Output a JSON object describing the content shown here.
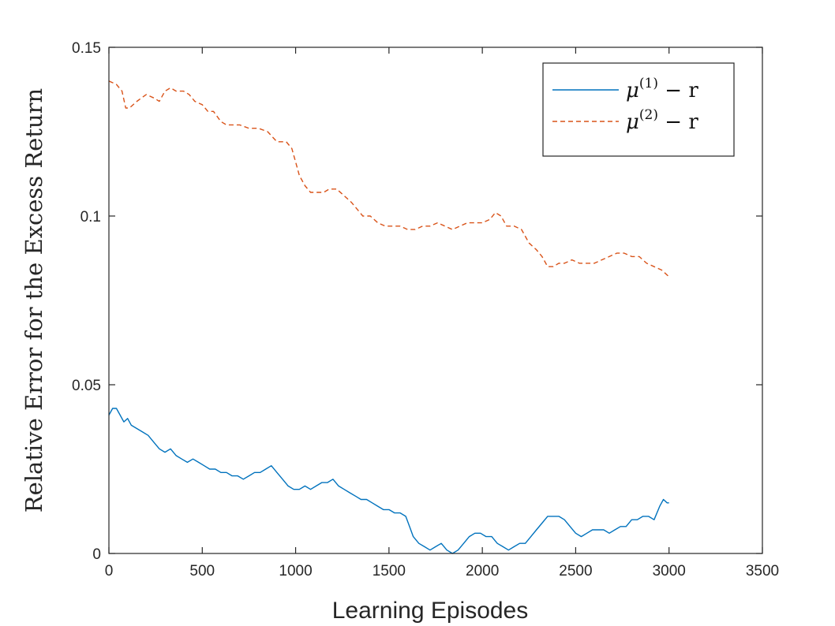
{
  "chart_data": {
    "type": "line",
    "xlabel": "Learning Episodes",
    "ylabel": "Relative Error for the Excess Return",
    "xlim": [
      0,
      3500
    ],
    "ylim": [
      0,
      0.15
    ],
    "xticks": [
      0,
      500,
      1000,
      1500,
      2000,
      2500,
      3000,
      3500
    ],
    "yticks": [
      0,
      0.05,
      0.1,
      0.15
    ],
    "xtick_labels": [
      "0",
      "500",
      "1000",
      "1500",
      "2000",
      "2500",
      "3000",
      "3500"
    ],
    "ytick_labels": [
      "0",
      "0.05",
      "0.1",
      "0.15"
    ],
    "grid": false,
    "legend_position": "top-right",
    "series": [
      {
        "name": "μ(1) − r",
        "name_parts": {
          "base": "μ",
          "sup": "(1)",
          "rest": " − r"
        },
        "color": "#0072BD",
        "style": "solid",
        "points": [
          [
            0,
            0.041
          ],
          [
            20,
            0.043
          ],
          [
            40,
            0.043
          ],
          [
            60,
            0.041
          ],
          [
            80,
            0.039
          ],
          [
            100,
            0.04
          ],
          [
            120,
            0.038
          ],
          [
            150,
            0.037
          ],
          [
            180,
            0.036
          ],
          [
            210,
            0.035
          ],
          [
            240,
            0.033
          ],
          [
            270,
            0.031
          ],
          [
            300,
            0.03
          ],
          [
            330,
            0.031
          ],
          [
            360,
            0.029
          ],
          [
            390,
            0.028
          ],
          [
            420,
            0.027
          ],
          [
            450,
            0.028
          ],
          [
            480,
            0.027
          ],
          [
            510,
            0.026
          ],
          [
            540,
            0.025
          ],
          [
            570,
            0.025
          ],
          [
            600,
            0.024
          ],
          [
            630,
            0.024
          ],
          [
            660,
            0.023
          ],
          [
            690,
            0.023
          ],
          [
            720,
            0.022
          ],
          [
            750,
            0.023
          ],
          [
            780,
            0.024
          ],
          [
            810,
            0.024
          ],
          [
            840,
            0.025
          ],
          [
            870,
            0.026
          ],
          [
            900,
            0.024
          ],
          [
            930,
            0.022
          ],
          [
            960,
            0.02
          ],
          [
            990,
            0.019
          ],
          [
            1020,
            0.019
          ],
          [
            1050,
            0.02
          ],
          [
            1080,
            0.019
          ],
          [
            1110,
            0.02
          ],
          [
            1140,
            0.021
          ],
          [
            1170,
            0.021
          ],
          [
            1200,
            0.022
          ],
          [
            1230,
            0.02
          ],
          [
            1260,
            0.019
          ],
          [
            1290,
            0.018
          ],
          [
            1320,
            0.017
          ],
          [
            1350,
            0.016
          ],
          [
            1380,
            0.016
          ],
          [
            1410,
            0.015
          ],
          [
            1440,
            0.014
          ],
          [
            1470,
            0.013
          ],
          [
            1500,
            0.013
          ],
          [
            1530,
            0.012
          ],
          [
            1560,
            0.012
          ],
          [
            1590,
            0.011
          ],
          [
            1610,
            0.008
          ],
          [
            1630,
            0.005
          ],
          [
            1660,
            0.003
          ],
          [
            1690,
            0.002
          ],
          [
            1720,
            0.001
          ],
          [
            1750,
            0.002
          ],
          [
            1780,
            0.003
          ],
          [
            1810,
            0.001
          ],
          [
            1840,
            0.0
          ],
          [
            1870,
            0.001
          ],
          [
            1900,
            0.003
          ],
          [
            1930,
            0.005
          ],
          [
            1960,
            0.006
          ],
          [
            1990,
            0.006
          ],
          [
            2020,
            0.005
          ],
          [
            2050,
            0.005
          ],
          [
            2080,
            0.003
          ],
          [
            2110,
            0.002
          ],
          [
            2140,
            0.001
          ],
          [
            2170,
            0.002
          ],
          [
            2200,
            0.003
          ],
          [
            2230,
            0.003
          ],
          [
            2260,
            0.005
          ],
          [
            2290,
            0.007
          ],
          [
            2320,
            0.009
          ],
          [
            2350,
            0.011
          ],
          [
            2380,
            0.011
          ],
          [
            2410,
            0.011
          ],
          [
            2440,
            0.01
          ],
          [
            2470,
            0.008
          ],
          [
            2500,
            0.006
          ],
          [
            2530,
            0.005
          ],
          [
            2560,
            0.006
          ],
          [
            2590,
            0.007
          ],
          [
            2620,
            0.007
          ],
          [
            2650,
            0.007
          ],
          [
            2680,
            0.006
          ],
          [
            2710,
            0.007
          ],
          [
            2740,
            0.008
          ],
          [
            2770,
            0.008
          ],
          [
            2800,
            0.01
          ],
          [
            2830,
            0.01
          ],
          [
            2860,
            0.011
          ],
          [
            2890,
            0.011
          ],
          [
            2920,
            0.01
          ],
          [
            2950,
            0.014
          ],
          [
            2970,
            0.016
          ],
          [
            2990,
            0.015
          ],
          [
            3000,
            0.015
          ]
        ]
      },
      {
        "name": "μ(2) − r",
        "name_parts": {
          "base": "μ",
          "sup": "(2)",
          "rest": " − r"
        },
        "color": "#D95319",
        "style": "dashed",
        "points": [
          [
            0,
            0.14
          ],
          [
            40,
            0.139
          ],
          [
            70,
            0.137
          ],
          [
            90,
            0.132
          ],
          [
            110,
            0.132
          ],
          [
            150,
            0.134
          ],
          [
            200,
            0.136
          ],
          [
            240,
            0.135
          ],
          [
            270,
            0.134
          ],
          [
            300,
            0.137
          ],
          [
            330,
            0.138
          ],
          [
            360,
            0.137
          ],
          [
            400,
            0.137
          ],
          [
            430,
            0.136
          ],
          [
            460,
            0.134
          ],
          [
            500,
            0.133
          ],
          [
            530,
            0.131
          ],
          [
            560,
            0.131
          ],
          [
            600,
            0.128
          ],
          [
            630,
            0.127
          ],
          [
            660,
            0.127
          ],
          [
            700,
            0.127
          ],
          [
            750,
            0.126
          ],
          [
            800,
            0.126
          ],
          [
            850,
            0.125
          ],
          [
            900,
            0.122
          ],
          [
            950,
            0.122
          ],
          [
            980,
            0.12
          ],
          [
            1000,
            0.116
          ],
          [
            1020,
            0.112
          ],
          [
            1050,
            0.109
          ],
          [
            1080,
            0.107
          ],
          [
            1110,
            0.107
          ],
          [
            1150,
            0.107
          ],
          [
            1180,
            0.108
          ],
          [
            1220,
            0.108
          ],
          [
            1260,
            0.106
          ],
          [
            1300,
            0.104
          ],
          [
            1330,
            0.102
          ],
          [
            1360,
            0.1
          ],
          [
            1400,
            0.1
          ],
          [
            1440,
            0.098
          ],
          [
            1480,
            0.097
          ],
          [
            1520,
            0.097
          ],
          [
            1560,
            0.097
          ],
          [
            1600,
            0.096
          ],
          [
            1640,
            0.096
          ],
          [
            1680,
            0.097
          ],
          [
            1720,
            0.097
          ],
          [
            1760,
            0.098
          ],
          [
            1800,
            0.097
          ],
          [
            1840,
            0.096
          ],
          [
            1880,
            0.097
          ],
          [
            1920,
            0.098
          ],
          [
            1960,
            0.098
          ],
          [
            2000,
            0.098
          ],
          [
            2040,
            0.099
          ],
          [
            2070,
            0.101
          ],
          [
            2100,
            0.1
          ],
          [
            2130,
            0.097
          ],
          [
            2170,
            0.097
          ],
          [
            2210,
            0.096
          ],
          [
            2250,
            0.092
          ],
          [
            2290,
            0.09
          ],
          [
            2320,
            0.088
          ],
          [
            2350,
            0.085
          ],
          [
            2380,
            0.085
          ],
          [
            2410,
            0.086
          ],
          [
            2440,
            0.086
          ],
          [
            2480,
            0.087
          ],
          [
            2520,
            0.086
          ],
          [
            2560,
            0.086
          ],
          [
            2600,
            0.086
          ],
          [
            2640,
            0.087
          ],
          [
            2680,
            0.088
          ],
          [
            2720,
            0.089
          ],
          [
            2760,
            0.089
          ],
          [
            2800,
            0.088
          ],
          [
            2840,
            0.088
          ],
          [
            2880,
            0.086
          ],
          [
            2920,
            0.085
          ],
          [
            2960,
            0.084
          ],
          [
            3000,
            0.082
          ]
        ]
      }
    ]
  }
}
